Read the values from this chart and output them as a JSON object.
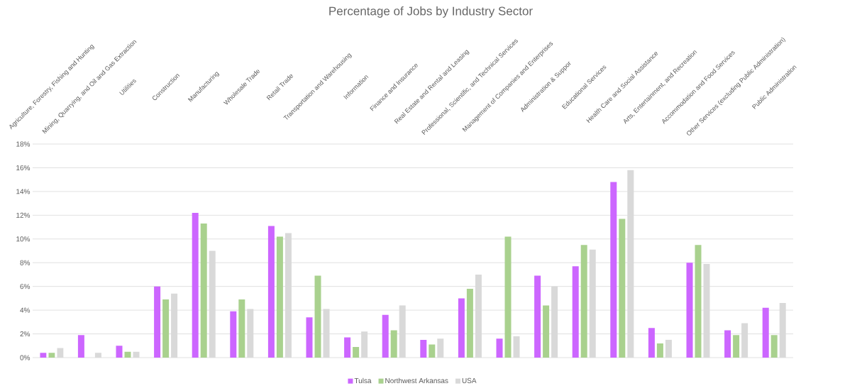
{
  "chart_data": {
    "type": "bar",
    "title": "Percentage of Jobs by Industry Sector",
    "categories": [
      "Agriculture, Forestry, Fishing and Hunting",
      "Mining, Quarrying, and Oil and Gas Extraction",
      "Utilities",
      "Construction",
      "Manufacturing",
      "Wholesale Trade",
      "Retail Trade",
      "Transportation and Warehousing",
      "Information",
      "Finance and Insurance",
      "Real Estate and Rental and Leasing",
      "Professional, Scientific, and Technical Services",
      "Management of Companies and Enterprises",
      "Administration & Suppor",
      "Educational Services",
      "Health Care and Social Assistance",
      "Arts, Entertainment, and Recreation",
      "Accommodation and Food Services",
      "Other Services (excluding Public Administration)",
      "Public Administration"
    ],
    "series": [
      {
        "name": "Tulsa",
        "color": "#cc66ff",
        "values": [
          0.4,
          1.9,
          1.0,
          6.0,
          12.2,
          3.9,
          11.1,
          3.4,
          1.7,
          3.6,
          1.5,
          5.0,
          1.6,
          6.9,
          7.7,
          14.8,
          2.5,
          8.0,
          2.3,
          4.2
        ]
      },
      {
        "name": "Northwest Arkansas",
        "color": "#a9d18e",
        "values": [
          0.4,
          0.0,
          0.5,
          4.9,
          11.3,
          4.9,
          10.2,
          6.9,
          0.9,
          2.3,
          1.1,
          5.8,
          10.2,
          4.4,
          9.5,
          11.7,
          1.2,
          9.5,
          1.9,
          1.9
        ]
      },
      {
        "name": "USA",
        "color": "#d9d9d9",
        "values": [
          0.8,
          0.4,
          0.5,
          5.4,
          9.0,
          4.1,
          10.5,
          4.1,
          2.2,
          4.4,
          1.6,
          7.0,
          1.8,
          6.0,
          9.1,
          15.8,
          1.5,
          7.9,
          2.9,
          4.6
        ]
      }
    ],
    "ylim": [
      0,
      18
    ],
    "yticks": [
      {
        "value": 0,
        "label": "0%"
      },
      {
        "value": 2,
        "label": "2%"
      },
      {
        "value": 4,
        "label": "4%"
      },
      {
        "value": 6,
        "label": "6%"
      },
      {
        "value": 8,
        "label": "8%"
      },
      {
        "value": 10,
        "label": "10%"
      },
      {
        "value": 12,
        "label": "12%"
      },
      {
        "value": 14,
        "label": "14%"
      },
      {
        "value": 16,
        "label": "16%"
      },
      {
        "value": 18,
        "label": "18%"
      }
    ],
    "grid": "y",
    "legend": "bottom"
  }
}
